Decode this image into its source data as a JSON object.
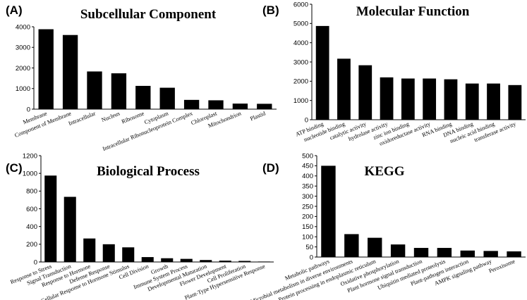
{
  "chart_data": [
    {
      "panel": "(A)",
      "type": "bar",
      "title": "Subcellular Component",
      "categories": [
        "Membrane",
        "Component of Membrane",
        "Intracellular",
        "Nucleus",
        "Ribosome",
        "Cytoplasm",
        "Intracellular Ribonucleoprotein Complex",
        "Chloroplast",
        "Mitochondrion",
        "Plastid"
      ],
      "values": [
        3880,
        3600,
        1830,
        1740,
        1130,
        1040,
        450,
        430,
        270,
        260
      ],
      "ylim": [
        0,
        4000
      ],
      "yticks": [
        0,
        1000,
        2000,
        3000,
        4000
      ],
      "xlabel": "",
      "ylabel": ""
    },
    {
      "panel": "(B)",
      "type": "bar",
      "title": "Molecular Function",
      "categories": [
        "ATP binding",
        "nucleotide binding",
        "catalytic activity",
        "hydrolase activity",
        "zinc ion binding",
        "oxidoreductase activity",
        "RNA binding",
        "DNA binding",
        "nucleic acid binding",
        "transferase activity"
      ],
      "values": [
        4870,
        3170,
        2830,
        2200,
        2140,
        2140,
        2100,
        1880,
        1880,
        1800
      ],
      "ylim": [
        0,
        6000
      ],
      "yticks": [
        0,
        1000,
        2000,
        3000,
        4000,
        5000,
        6000
      ],
      "xlabel": "",
      "ylabel": ""
    },
    {
      "panel": "(C)",
      "type": "bar",
      "title": "Biological Process",
      "categories": [
        "Response to Stress",
        "Signal Transduction",
        "Response to Hormone",
        "Defense Response",
        "Cellular Response to Hormone Stimulus",
        "Cell Division",
        "Growth",
        "Immune System Process",
        "Developmental Maturation",
        "Flower Development",
        "Cell Proliferation",
        "Plant-Type Hypersensitive Response"
      ],
      "values": [
        975,
        735,
        265,
        200,
        165,
        55,
        42,
        35,
        22,
        15,
        12,
        5
      ],
      "ylim": [
        0,
        1200
      ],
      "yticks": [
        0,
        200,
        400,
        600,
        800,
        1000,
        1200
      ],
      "xlabel": "",
      "ylabel": ""
    },
    {
      "panel": "(D)",
      "type": "bar",
      "title": "KEGG",
      "categories": [
        "Metabolic pathways",
        "Microbial metabolism in diverse environments",
        "Protein processing in endoplasmic reticulum",
        "Oxidative phosphorylation",
        "Plant hormone signal transduction",
        "Ubiquitin mediated proteolysis",
        "Plant-pathogen interaction",
        "AMPK signaling pathway",
        "Peroxisome"
      ],
      "values": [
        450,
        113,
        95,
        62,
        45,
        45,
        32,
        30,
        28
      ],
      "ylim": [
        0,
        500
      ],
      "yticks": [
        0,
        50,
        100,
        150,
        200,
        250,
        300,
        350,
        400,
        450,
        500
      ],
      "xlabel": "",
      "ylabel": ""
    }
  ]
}
